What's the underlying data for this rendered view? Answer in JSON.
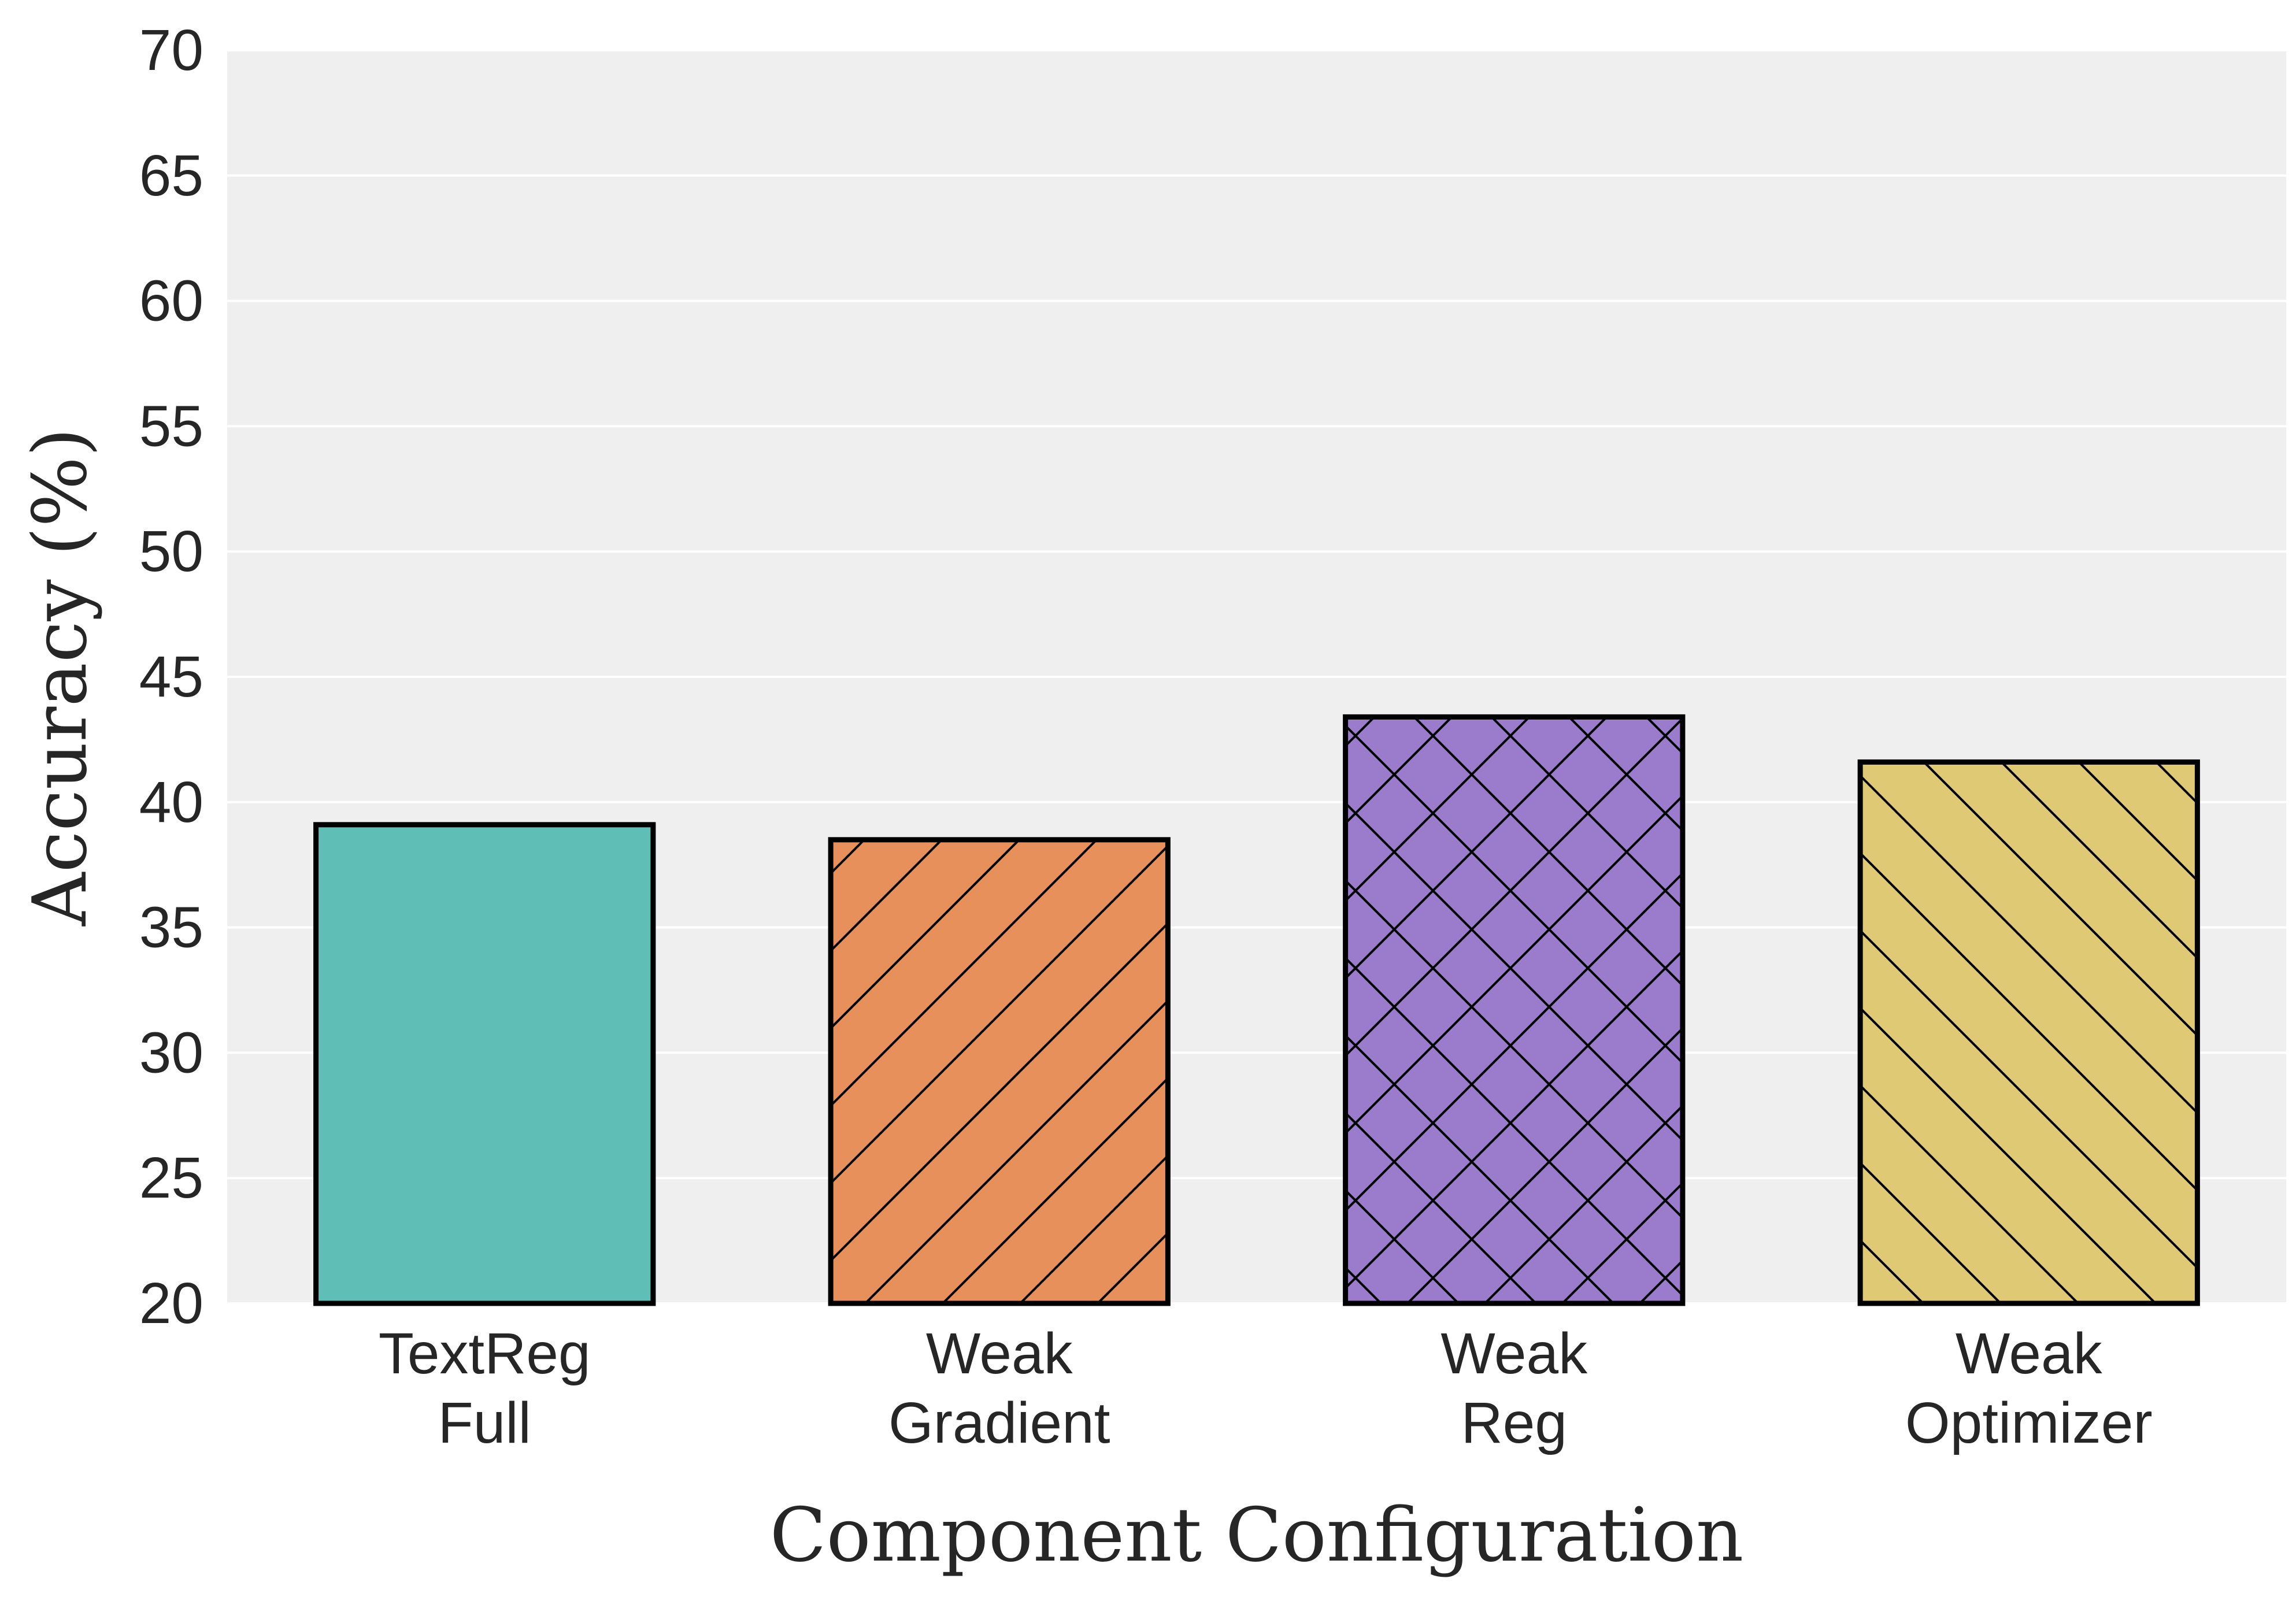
{
  "chart_data": {
    "type": "bar",
    "categories": [
      [
        "TextReg",
        "Full"
      ],
      [
        "Weak",
        "Gradient"
      ],
      [
        "Weak",
        "Reg"
      ],
      [
        "Weak",
        "Optimizer"
      ]
    ],
    "values": [
      39.1,
      38.5,
      43.4,
      41.6
    ],
    "colors": [
      "#5fbfb6",
      "#e7905c",
      "#9b7ccc",
      "#e0c975"
    ],
    "hatches": [
      "none",
      "diagonal-up",
      "cross-diagonal",
      "diagonal-down"
    ],
    "xlabel": "Component Configuration",
    "ylabel": "Accuracy (%)",
    "ylim": [
      20,
      70
    ],
    "yticks": [
      20,
      25,
      30,
      35,
      40,
      45,
      50,
      55,
      60,
      65,
      70
    ],
    "grid": "horizontal",
    "background": "#efefef",
    "legend": "none"
  }
}
